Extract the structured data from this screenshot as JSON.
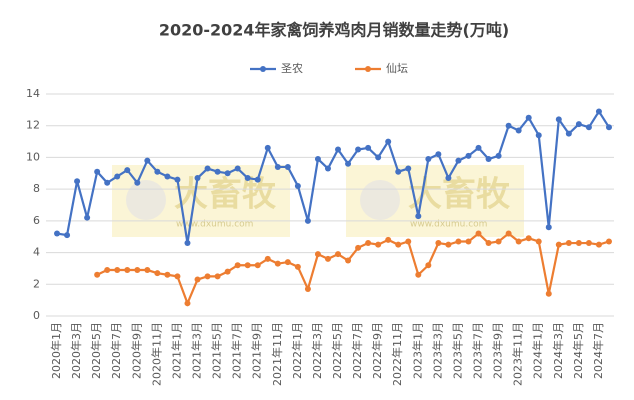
{
  "chart_data": {
    "type": "line",
    "title": "2020-2024年家禽饲养鸡肉月销数量走势(万吨)",
    "categories": [
      "2020年1月",
      null,
      "2020年3月",
      null,
      "2020年5月",
      null,
      "2020年7月",
      null,
      "2020年9月",
      null,
      "2020年11月",
      null,
      "2021年1月",
      null,
      "2021年3月",
      null,
      "2021年5月",
      null,
      "2021年7月",
      null,
      "2021年9月",
      null,
      "2021年11月",
      null,
      "2022年1月",
      null,
      "2022年3月",
      null,
      "2022年5月",
      null,
      "2022年7月",
      null,
      "2022年9月",
      null,
      "2022年11月",
      null,
      "2023年1月",
      null,
      "2023年3月",
      null,
      "2023年5月",
      null,
      "2023年7月",
      null,
      "2023年9月",
      null,
      "2023年11月",
      null,
      "2024年1月",
      null,
      "2024年3月",
      null,
      "2024年5月",
      null,
      "2024年7月",
      null
    ],
    "series": [
      {
        "name": "圣农",
        "color": "#4472c4",
        "values": [
          5.2,
          5.1,
          8.5,
          6.2,
          9.1,
          8.4,
          8.8,
          9.2,
          8.4,
          9.8,
          9.1,
          8.8,
          8.6,
          4.6,
          8.7,
          9.3,
          9.1,
          9.0,
          9.3,
          8.7,
          8.6,
          10.6,
          9.4,
          9.4,
          8.2,
          6.0,
          9.9,
          9.3,
          10.5,
          9.6,
          10.5,
          10.6,
          10.0,
          11.0,
          9.1,
          9.3,
          6.3,
          9.9,
          10.2,
          8.7,
          9.8,
          10.1,
          10.6,
          9.9,
          10.1,
          12.0,
          11.7,
          12.5,
          11.4,
          5.6,
          12.4,
          11.5,
          12.1,
          11.9,
          12.9,
          11.9
        ]
      },
      {
        "name": "仙坛",
        "color": "#ed7d31",
        "values": [
          null,
          null,
          null,
          null,
          2.6,
          2.9,
          2.9,
          2.9,
          2.9,
          2.9,
          2.7,
          2.6,
          2.5,
          0.8,
          2.3,
          2.5,
          2.5,
          2.8,
          3.2,
          3.2,
          3.2,
          3.6,
          3.3,
          3.4,
          3.1,
          1.7,
          3.9,
          3.6,
          3.9,
          3.5,
          4.3,
          4.6,
          4.5,
          4.8,
          4.5,
          4.7,
          2.6,
          3.2,
          4.6,
          4.5,
          4.7,
          4.7,
          5.2,
          4.6,
          4.7,
          5.2,
          4.7,
          4.9,
          4.7,
          1.4,
          4.5,
          4.6,
          4.6,
          4.6,
          4.5,
          4.7
        ]
      }
    ],
    "ylim": [
      0,
      14
    ],
    "yticks": [
      0,
      2,
      4,
      6,
      8,
      10,
      12,
      14
    ],
    "grid": true,
    "legend": "top",
    "watermarks": [
      {
        "text": "大畜牧",
        "url": "www.dxumu.com"
      },
      {
        "text": "大畜牧",
        "url": "www.dxumu.com"
      }
    ]
  }
}
